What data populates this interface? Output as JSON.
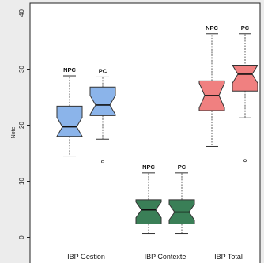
{
  "chart_data": {
    "type": "box",
    "ylabel": "Note",
    "ylim": [
      -1,
      42
    ],
    "yticks": [
      0,
      10,
      20,
      30,
      40
    ],
    "ytick_labels": [
      "0",
      "10",
      "20",
      "30",
      "40"
    ],
    "groups": [
      {
        "name": "IBP Gestion",
        "color": "#8bb4ea",
        "boxes": [
          {
            "label": "NPC",
            "whisker_low": 14.5,
            "q1": 18,
            "median": 19.7,
            "q3": 23.4,
            "whisker_high": 28.8,
            "notch": 1.7,
            "outliers": []
          },
          {
            "label": "PC",
            "whisker_low": 17.5,
            "q1": 21.7,
            "median": 23.6,
            "q3": 26.8,
            "whisker_high": 28.6,
            "notch": 1.7,
            "outliers": [
              13.5
            ]
          }
        ]
      },
      {
        "name": "IBP Contexte",
        "color": "#3a7f57",
        "boxes": [
          {
            "label": "NPC",
            "whisker_low": 0.7,
            "q1": 2.4,
            "median": 4.9,
            "q3": 6.7,
            "whisker_high": 11.5,
            "notch": 1.4,
            "outliers": []
          },
          {
            "label": "PC",
            "whisker_low": 0.7,
            "q1": 2.4,
            "median": 4.5,
            "q3": 6.7,
            "whisker_high": 11.5,
            "notch": 1.4,
            "outliers": []
          }
        ]
      },
      {
        "name": "IBP Total",
        "color": "#f08080",
        "boxes": [
          {
            "label": "NPC",
            "whisker_low": 16.2,
            "q1": 22.6,
            "median": 25.3,
            "q3": 27.9,
            "whisker_high": 36.3,
            "notch": 2.2,
            "outliers": []
          },
          {
            "label": "PC",
            "whisker_low": 21.3,
            "q1": 26.1,
            "median": 29.1,
            "q3": 30.5,
            "whisker_high": 36.3,
            "notch": 1.6,
            "outliers": [
              13.7
            ]
          }
        ]
      }
    ]
  }
}
